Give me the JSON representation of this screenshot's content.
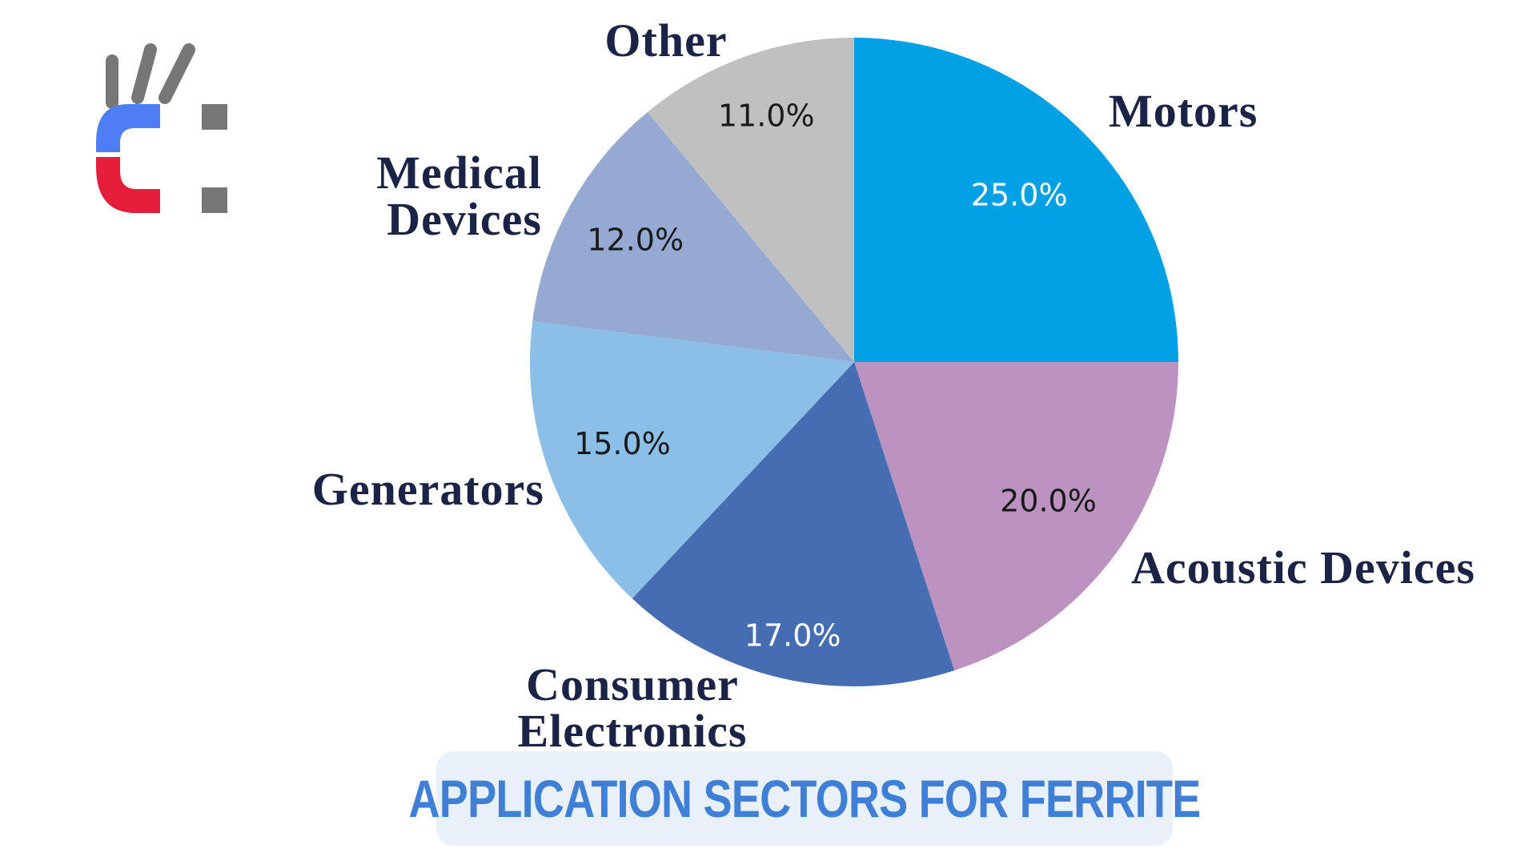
{
  "logo": {
    "name": "magnet-logo-icon"
  },
  "colors": {
    "motors": "#02a1e6",
    "acoustic": "#bb92c0",
    "consumer": "#466db2",
    "generators": "#8bbfe8",
    "medical": "#95aad3",
    "other": "#c0c0c0",
    "title": "#3f7fd6",
    "label": "#1b2346"
  },
  "chart_data": {
    "type": "pie",
    "title": "APPLICATION SECTORS FOR FERRITE",
    "start_angle_deg": 0,
    "direction": "clockwise",
    "slices": [
      {
        "label": "Motors",
        "value": 25.0,
        "display": "25.0%",
        "color": "#02a1e6",
        "text_color": "#ffffff",
        "label_lines": [
          "Motors"
        ]
      },
      {
        "label": "Acoustic Devices",
        "value": 20.0,
        "display": "20.0%",
        "color": "#bb92c0",
        "text_color": "#1a1a1a",
        "label_lines": [
          "Acoustic Devices"
        ]
      },
      {
        "label": "Consumer Electronics",
        "value": 17.0,
        "display": "17.0%",
        "color": "#466db2",
        "text_color": "#ffffff",
        "label_lines": [
          "Consumer",
          "Electronics"
        ]
      },
      {
        "label": "Generators",
        "value": 15.0,
        "display": "15.0%",
        "color": "#8bbfe8",
        "text_color": "#1a1a1a",
        "label_lines": [
          "Generators"
        ]
      },
      {
        "label": "Medical Devices",
        "value": 12.0,
        "display": "12.0%",
        "color": "#95aad3",
        "text_color": "#1a1a1a",
        "label_lines": [
          "Medical",
          "Devices"
        ]
      },
      {
        "label": "Other",
        "value": 11.0,
        "display": "11.0%",
        "color": "#c0c0c0",
        "text_color": "#1a1a1a",
        "label_lines": [
          "Other"
        ]
      }
    ]
  }
}
